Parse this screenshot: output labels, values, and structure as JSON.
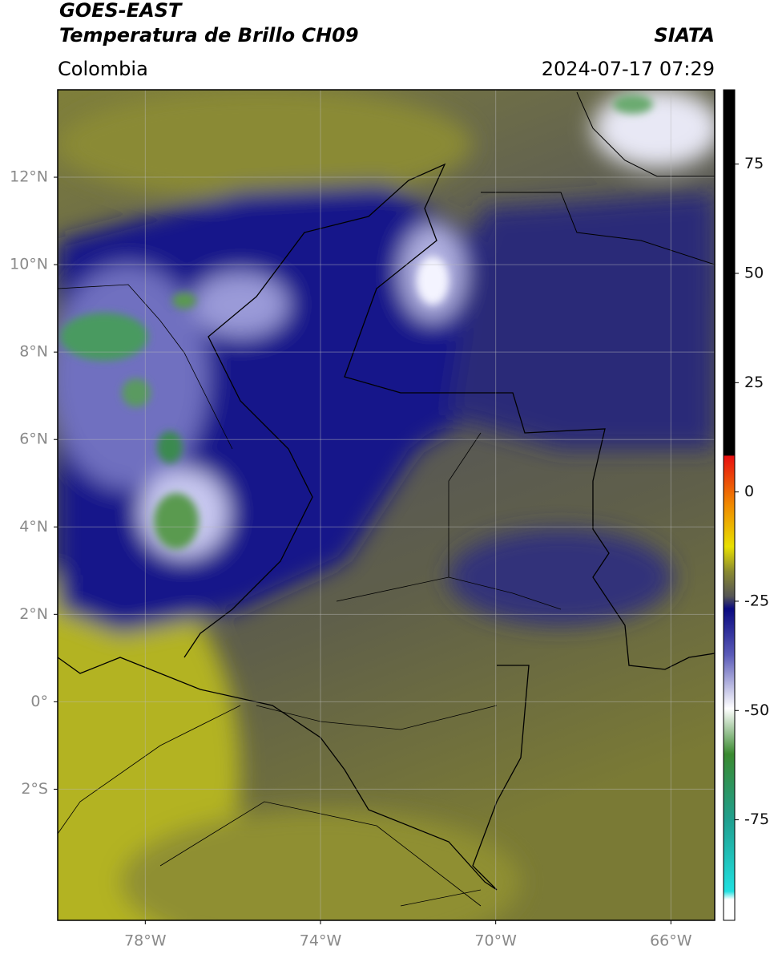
{
  "header": {
    "satellite": "GOES-EAST",
    "product": "Temperatura de Brillo CH09",
    "agency": "SIATA",
    "region": "Colombia",
    "datetime": "2024-07-17 07:29"
  },
  "map": {
    "lon_range": [
      -80,
      -65
    ],
    "lat_range": [
      -5,
      14
    ],
    "grid": true,
    "lon_ticks": [
      {
        "value": -78,
        "label": "78°W"
      },
      {
        "value": -74,
        "label": "74°W"
      },
      {
        "value": -70,
        "label": "70°W"
      },
      {
        "value": -66,
        "label": "66°W"
      }
    ],
    "lat_ticks": [
      {
        "value": 12,
        "label": "12°N"
      },
      {
        "value": 10,
        "label": "10°N"
      },
      {
        "value": 8,
        "label": "8°N"
      },
      {
        "value": 6,
        "label": "6°N"
      },
      {
        "value": 4,
        "label": "4°N"
      },
      {
        "value": 2,
        "label": "2°N"
      },
      {
        "value": 0,
        "label": "0°"
      },
      {
        "value": -2,
        "label": "2°S"
      }
    ]
  },
  "colorbar": {
    "range": [
      -98,
      92
    ],
    "ticks": [
      75,
      50,
      25,
      0,
      -25,
      -50,
      -75
    ]
  }
}
